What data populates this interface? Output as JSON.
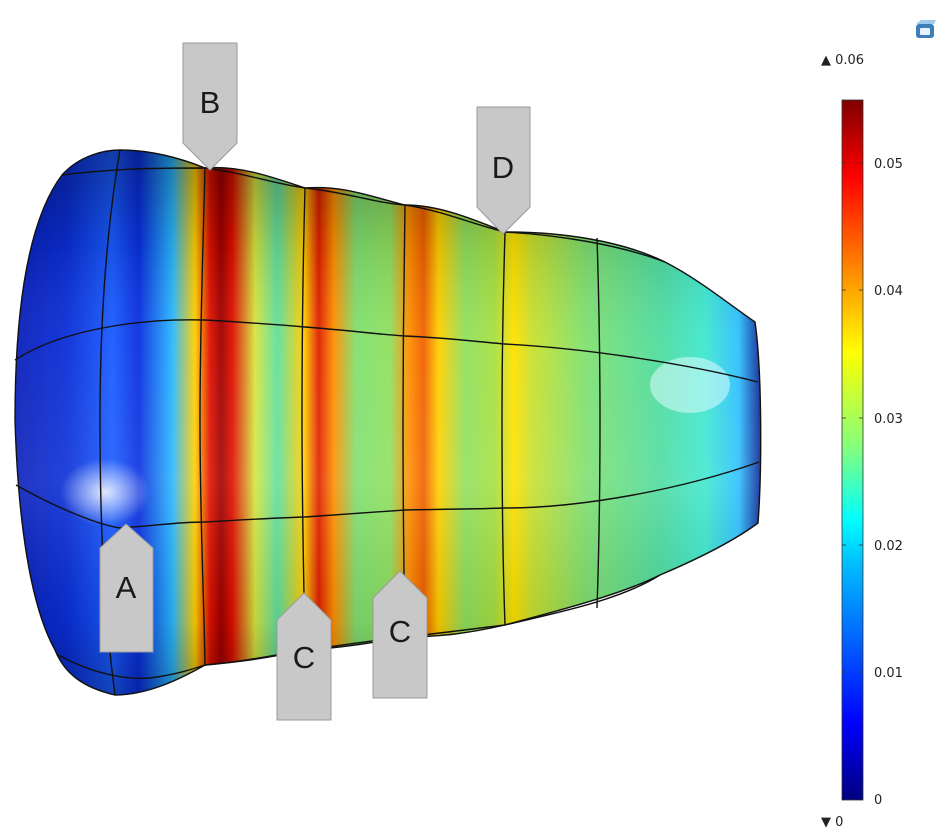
{
  "colorbar": {
    "max_label": "▲ 0.06",
    "min_label": "▼ 0",
    "ticks": [
      "0.05",
      "0.04",
      "0.03",
      "0.02",
      "0.01",
      "0"
    ],
    "range": [
      0,
      0.055
    ],
    "colormap": [
      "#00007f",
      "#0000ff",
      "#0080ff",
      "#00ffff",
      "#80ff80",
      "#ffff00",
      "#ff8000",
      "#ff0000",
      "#7f0000"
    ]
  },
  "markers": [
    {
      "label": "A",
      "direction": "up"
    },
    {
      "label": "B",
      "direction": "down"
    },
    {
      "label": "C",
      "direction": "up"
    },
    {
      "label": "C",
      "direction": "up"
    },
    {
      "label": "D",
      "direction": "down"
    }
  ],
  "toolbar": {
    "icon": "view-cube-icon"
  }
}
